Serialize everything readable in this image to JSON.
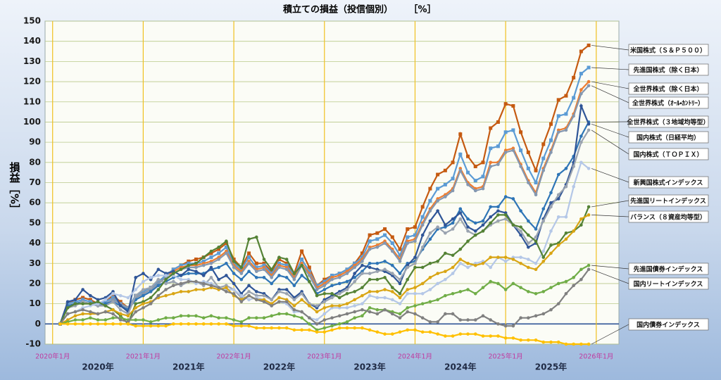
{
  "chart_data": {
    "type": "line",
    "title": "積立ての損益（投信個別）",
    "title_unit": "［%］",
    "ylabel": "損益［%］",
    "ylim": [
      -10,
      150
    ],
    "yticks": [
      -10,
      0,
      10,
      20,
      30,
      40,
      50,
      60,
      70,
      80,
      90,
      100,
      110,
      120,
      130,
      140,
      150
    ],
    "xlim": [
      "2019-12",
      "2026-04"
    ],
    "xticks": [
      {
        "value": "2020-01",
        "label": "2020年1月"
      },
      {
        "value": "2021-01",
        "label": "2021年1月"
      },
      {
        "value": "2022-01",
        "label": "2022年1月"
      },
      {
        "value": "2023-01",
        "label": "2023年1月"
      },
      {
        "value": "2024-01",
        "label": "2024年1月"
      },
      {
        "value": "2025-01",
        "label": "2025年1月"
      },
      {
        "value": "2026-01",
        "label": "2026年1月"
      }
    ],
    "year_labels": [
      "2020年",
      "2021年",
      "2022年",
      "2023年",
      "2024年",
      "2025年"
    ],
    "grid": true,
    "x": [
      "2020-02",
      "2020-03",
      "2020-04",
      "2020-05",
      "2020-06",
      "2020-07",
      "2020-08",
      "2020-09",
      "2020-10",
      "2020-11",
      "2020-12",
      "2021-01",
      "2021-02",
      "2021-03",
      "2021-04",
      "2021-05",
      "2021-06",
      "2021-07",
      "2021-08",
      "2021-09",
      "2021-10",
      "2021-11",
      "2021-12",
      "2022-01",
      "2022-02",
      "2022-03",
      "2022-04",
      "2022-05",
      "2022-06",
      "2022-07",
      "2022-08",
      "2022-09",
      "2022-10",
      "2022-11",
      "2022-12",
      "2023-01",
      "2023-02",
      "2023-03",
      "2023-04",
      "2023-05",
      "2023-06",
      "2023-07",
      "2023-08",
      "2023-09",
      "2023-10",
      "2023-11",
      "2023-12",
      "2024-01",
      "2024-02",
      "2024-03",
      "2024-04",
      "2024-05",
      "2024-06",
      "2024-07",
      "2024-08",
      "2024-09",
      "2024-10",
      "2024-11",
      "2024-12",
      "2025-01",
      "2025-02",
      "2025-03",
      "2025-04",
      "2025-05",
      "2025-06",
      "2025-07",
      "2025-08",
      "2025-09",
      "2025-10",
      "2025-11",
      "2025-12"
    ],
    "series": [
      {
        "name": "米国株式（Ｓ＆Ｐ５００）",
        "color": "#c55a11",
        "marker": "square",
        "values": [
          0,
          10,
          12,
          13,
          12,
          10,
          11,
          14,
          11,
          8,
          14,
          16,
          18,
          21,
          24,
          27,
          29,
          31,
          32,
          33,
          35,
          37,
          40,
          32,
          28,
          35,
          30,
          30,
          26,
          32,
          30,
          25,
          36,
          28,
          19,
          22,
          24,
          25,
          27,
          30,
          35,
          44,
          45,
          47,
          43,
          37,
          47,
          48,
          58,
          67,
          74,
          76,
          80,
          94,
          83,
          78,
          80,
          97,
          100,
          109,
          108,
          95,
          85,
          76,
          89,
          99,
          111,
          113,
          122,
          135,
          138
        ]
      },
      {
        "name": "先進国株式（除く日本）",
        "color": "#5b9bd5",
        "marker": "square",
        "values": [
          0,
          10,
          11,
          12,
          11,
          10,
          11,
          13,
          10,
          8,
          14,
          16,
          18,
          21,
          24,
          27,
          29,
          30,
          30,
          31,
          33,
          35,
          38,
          30,
          27,
          33,
          28,
          29,
          25,
          30,
          29,
          24,
          32,
          26,
          19,
          21,
          24,
          25,
          27,
          30,
          33,
          41,
          42,
          44,
          40,
          34,
          43,
          44,
          53,
          61,
          67,
          69,
          72,
          84,
          75,
          71,
          73,
          87,
          88,
          95,
          96,
          86,
          77,
          70,
          82,
          91,
          103,
          104,
          112,
          124,
          127
        ]
      },
      {
        "name": "全世界株式（除く日本）",
        "color": "#ed7d31",
        "marker": "circle",
        "values": [
          0,
          9,
          10,
          11,
          10,
          9,
          10,
          12,
          10,
          8,
          13,
          15,
          17,
          20,
          23,
          26,
          28,
          29,
          29,
          30,
          31,
          33,
          36,
          29,
          26,
          31,
          27,
          28,
          24,
          29,
          28,
          23,
          30,
          25,
          18,
          20,
          23,
          24,
          26,
          29,
          32,
          38,
          39,
          41,
          37,
          32,
          41,
          42,
          50,
          57,
          62,
          64,
          67,
          77,
          70,
          67,
          68,
          80,
          80,
          86,
          87,
          79,
          71,
          65,
          77,
          86,
          96,
          97,
          104,
          116,
          120
        ]
      },
      {
        "name": "全世界株式（ｵｰﾙ・ｶﾝﾄﾘｰ）",
        "color": "#8497b0",
        "marker": "circle",
        "values": [
          0,
          9,
          10,
          11,
          10,
          9,
          10,
          12,
          10,
          8,
          13,
          15,
          17,
          20,
          23,
          25,
          27,
          28,
          28,
          29,
          30,
          32,
          35,
          28,
          25,
          30,
          26,
          27,
          23,
          28,
          27,
          22,
          29,
          24,
          17,
          19,
          22,
          23,
          25,
          28,
          31,
          37,
          38,
          40,
          36,
          31,
          40,
          41,
          49,
          56,
          61,
          63,
          66,
          76,
          69,
          66,
          67,
          78,
          79,
          85,
          86,
          78,
          70,
          64,
          76,
          85,
          95,
          96,
          103,
          114,
          118
        ]
      },
      {
        "name": "全世界株式（３地域均等型）",
        "color": "#2e75b6",
        "marker": "circle",
        "values": [
          0,
          9,
          10,
          11,
          10,
          9,
          10,
          11,
          9,
          7,
          12,
          14,
          16,
          19,
          21,
          23,
          24,
          25,
          25,
          25,
          27,
          28,
          30,
          25,
          22,
          26,
          23,
          23,
          20,
          24,
          23,
          19,
          24,
          21,
          15,
          17,
          19,
          20,
          21,
          23,
          26,
          30,
          30,
          31,
          29,
          25,
          30,
          31,
          37,
          42,
          47,
          48,
          50,
          57,
          52,
          50,
          51,
          58,
          58,
          63,
          62,
          56,
          51,
          47,
          57,
          65,
          74,
          77,
          83,
          93,
          100
        ]
      },
      {
        "name": "国内株式（日経平均）",
        "color": "#2f5597",
        "marker": "circle",
        "values": [
          0,
          11,
          12,
          17,
          14,
          12,
          13,
          16,
          9,
          6,
          23,
          25,
          22,
          27,
          25,
          26,
          24,
          27,
          26,
          24,
          28,
          22,
          24,
          20,
          15,
          19,
          16,
          15,
          12,
          17,
          17,
          13,
          16,
          10,
          8,
          12,
          14,
          16,
          18,
          25,
          29,
          28,
          27,
          26,
          24,
          20,
          29,
          33,
          44,
          51,
          56,
          49,
          52,
          55,
          48,
          46,
          49,
          53,
          56,
          55,
          49,
          44,
          38,
          40,
          52,
          60,
          62,
          69,
          80,
          108,
          99
        ]
      },
      {
        "name": "国内株式（ＴＯＰＩＸ）",
        "color": "#9aa3b0",
        "marker": "circle",
        "values": [
          0,
          8,
          9,
          11,
          10,
          9,
          9,
          11,
          7,
          5,
          14,
          17,
          18,
          22,
          20,
          21,
          19,
          21,
          21,
          19,
          23,
          18,
          19,
          17,
          13,
          16,
          14,
          14,
          12,
          16,
          15,
          12,
          15,
          10,
          9,
          11,
          13,
          15,
          17,
          21,
          25,
          25,
          26,
          27,
          25,
          22,
          28,
          30,
          38,
          45,
          48,
          45,
          47,
          52,
          46,
          44,
          46,
          49,
          51,
          52,
          49,
          46,
          40,
          43,
          51,
          58,
          64,
          68,
          78,
          90,
          96
        ]
      },
      {
        "name": "新興国株式インデックス",
        "color": "#b4c7e7",
        "marker": "circle",
        "values": [
          0,
          5,
          6,
          8,
          9,
          10,
          12,
          15,
          14,
          13,
          17,
          21,
          23,
          24,
          24,
          24,
          22,
          22,
          20,
          21,
          20,
          18,
          17,
          17,
          14,
          12,
          13,
          12,
          9,
          11,
          10,
          6,
          6,
          3,
          2,
          5,
          8,
          8,
          8,
          9,
          10,
          14,
          13,
          13,
          12,
          10,
          15,
          15,
          15,
          17,
          20,
          22,
          25,
          30,
          28,
          30,
          31,
          28,
          33,
          31,
          33,
          33,
          32,
          30,
          36,
          46,
          53,
          53,
          68,
          80,
          77
        ]
      },
      {
        "name": "先進国リートインデックス",
        "color": "#548235",
        "marker": "circle",
        "values": [
          0,
          8,
          10,
          10,
          10,
          11,
          9,
          7,
          4,
          0,
          10,
          11,
          13,
          17,
          22,
          25,
          27,
          29,
          30,
          33,
          36,
          38,
          41,
          31,
          28,
          42,
          43,
          32,
          27,
          33,
          32,
          25,
          29,
          21,
          14,
          15,
          15,
          13,
          15,
          16,
          18,
          22,
          22,
          23,
          18,
          15,
          22,
          28,
          28,
          30,
          31,
          35,
          34,
          37,
          41,
          44,
          46,
          50,
          54,
          54,
          49,
          48,
          44,
          41,
          33,
          39,
          40,
          45,
          46,
          49,
          58
        ]
      },
      {
        "name": "バランス（８資産均等型）",
        "color": "#d9a514",
        "marker": "circle",
        "values": [
          0,
          2,
          4,
          5,
          5,
          5,
          6,
          7,
          5,
          4,
          8,
          10,
          11,
          13,
          14,
          15,
          16,
          16,
          17,
          17,
          18,
          17,
          18,
          14,
          12,
          14,
          12,
          12,
          10,
          13,
          12,
          9,
          12,
          9,
          6,
          8,
          9,
          9,
          10,
          12,
          14,
          16,
          16,
          17,
          16,
          13,
          17,
          18,
          20,
          23,
          25,
          26,
          28,
          32,
          30,
          29,
          30,
          33,
          33,
          33,
          32,
          30,
          28,
          27,
          31,
          35,
          39,
          42,
          46,
          52,
          54
        ]
      },
      {
        "name": "先進国債券インデックス",
        "color": "#70ad47",
        "marker": "circle",
        "values": [
          0,
          1,
          2,
          2,
          3,
          2,
          2,
          3,
          3,
          2,
          2,
          2,
          1,
          2,
          3,
          3,
          4,
          4,
          4,
          3,
          4,
          3,
          3,
          2,
          1,
          3,
          3,
          3,
          4,
          5,
          5,
          4,
          3,
          0,
          -3,
          -2,
          -1,
          0,
          1,
          3,
          4,
          8,
          7,
          7,
          6,
          5,
          8,
          9,
          10,
          11,
          12,
          14,
          15,
          16,
          17,
          15,
          18,
          21,
          20,
          17,
          20,
          18,
          16,
          15,
          16,
          18,
          20,
          21,
          23,
          27,
          29
        ]
      },
      {
        "name": "国内リートインデックス",
        "color": "#808080",
        "marker": "circle",
        "values": [
          0,
          5,
          6,
          7,
          6,
          5,
          6,
          5,
          2,
          1,
          6,
          8,
          10,
          14,
          17,
          19,
          20,
          21,
          21,
          20,
          19,
          18,
          16,
          15,
          11,
          14,
          12,
          11,
          9,
          11,
          11,
          7,
          6,
          3,
          0,
          2,
          3,
          4,
          5,
          6,
          7,
          6,
          5,
          7,
          5,
          3,
          6,
          5,
          3,
          1,
          1,
          5,
          5,
          2,
          2,
          2,
          4,
          2,
          0,
          -1,
          -1,
          3,
          3,
          4,
          5,
          7,
          10,
          15,
          19,
          22,
          27
        ]
      },
      {
        "name": "国内債券インデックス",
        "color": "#ffc000",
        "marker": "circle",
        "values": [
          0,
          0,
          0,
          0,
          0,
          0,
          0,
          0,
          0,
          0,
          -1,
          -1,
          -1,
          -1,
          -1,
          0,
          0,
          0,
          0,
          0,
          0,
          0,
          0,
          -1,
          -1,
          -1,
          -2,
          -2,
          -2,
          -2,
          -2,
          -3,
          -3,
          -3,
          -4,
          -4,
          -3,
          -2,
          -2,
          -2,
          -2,
          -3,
          -4,
          -5,
          -5,
          -4,
          -3,
          -3,
          -4,
          -4,
          -5,
          -6,
          -6,
          -5,
          -5,
          -5,
          -6,
          -6,
          -6,
          -7,
          -7,
          -8,
          -8,
          -8,
          -9,
          -9,
          -9,
          -10,
          -10,
          -10,
          -10
        ]
      }
    ]
  }
}
